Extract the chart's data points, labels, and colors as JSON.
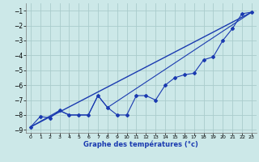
{
  "title": "",
  "xlabel": "Graphe des températures (°c)",
  "ylabel": "",
  "background_color": "#cce8e8",
  "grid_color": "#aacccc",
  "line_color": "#1a3ab0",
  "xlim": [
    -0.5,
    23.5
  ],
  "ylim": [
    -9.2,
    -0.5
  ],
  "xticks": [
    0,
    1,
    2,
    3,
    4,
    5,
    6,
    7,
    8,
    9,
    10,
    11,
    12,
    13,
    14,
    15,
    16,
    17,
    18,
    19,
    20,
    21,
    22,
    23
  ],
  "yticks": [
    -9,
    -8,
    -7,
    -6,
    -5,
    -4,
    -3,
    -2,
    -1
  ],
  "line1_markers": {
    "x": [
      0,
      1,
      2,
      3,
      4,
      5,
      6,
      7,
      8,
      9,
      10,
      11,
      12,
      13,
      14,
      15,
      16,
      17,
      18,
      19,
      20,
      21,
      22,
      23
    ],
    "y": [
      -8.8,
      -8.1,
      -8.2,
      -7.7,
      -8.0,
      -8.0,
      -8.0,
      -6.7,
      -7.5,
      -8.0,
      -8.0,
      -6.7,
      -6.7,
      -7.0,
      -6.0,
      -5.5,
      -5.3,
      -5.2,
      -4.3,
      -4.1,
      -3.0,
      -2.2,
      -1.2,
      -1.1
    ]
  },
  "line2_straight": {
    "x": [
      0,
      23
    ],
    "y": [
      -8.8,
      -1.1
    ]
  },
  "line3_partial": {
    "x": [
      0,
      3,
      4,
      5,
      6,
      7,
      8,
      23
    ],
    "y": [
      -8.8,
      -7.7,
      -8.0,
      -8.0,
      -8.0,
      -6.7,
      -7.5,
      -1.1
    ]
  }
}
